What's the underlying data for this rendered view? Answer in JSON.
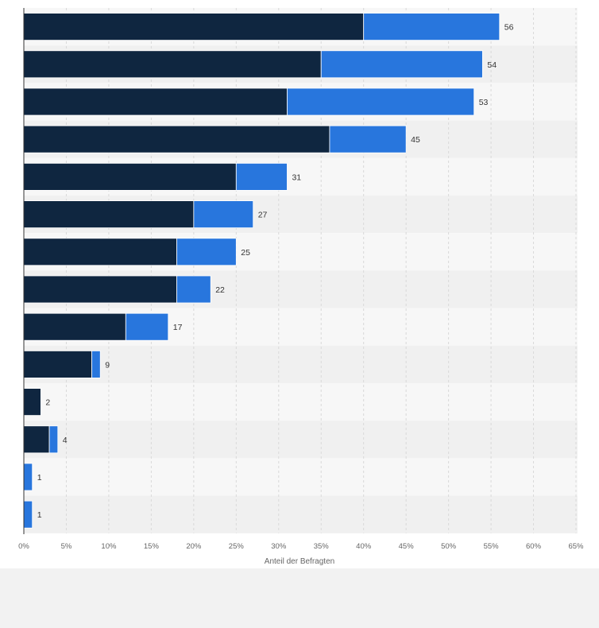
{
  "chart_data": {
    "type": "bar",
    "orientation": "horizontal",
    "stacked": true,
    "xlabel": "Anteil der Befragten",
    "ylabel": "",
    "xlim": [
      0,
      65
    ],
    "x_ticks": [
      "0%",
      "5%",
      "10%",
      "15%",
      "20%",
      "25%",
      "30%",
      "35%",
      "40%",
      "45%",
      "50%",
      "55%",
      "60%",
      "65%"
    ],
    "grid": true,
    "series": [
      {
        "color": "#0f2640",
        "values": [
          40,
          35,
          31,
          36,
          25,
          20,
          18,
          18,
          12,
          8,
          2,
          3,
          0,
          0
        ]
      },
      {
        "color": "#2876dd",
        "values": [
          16,
          19,
          22,
          9,
          6,
          7,
          7,
          4,
          5,
          1,
          0,
          1,
          1,
          1
        ]
      }
    ],
    "totals": [
      56,
      54,
      53,
      45,
      31,
      27,
      25,
      22,
      17,
      9,
      2,
      4,
      1,
      1
    ]
  }
}
